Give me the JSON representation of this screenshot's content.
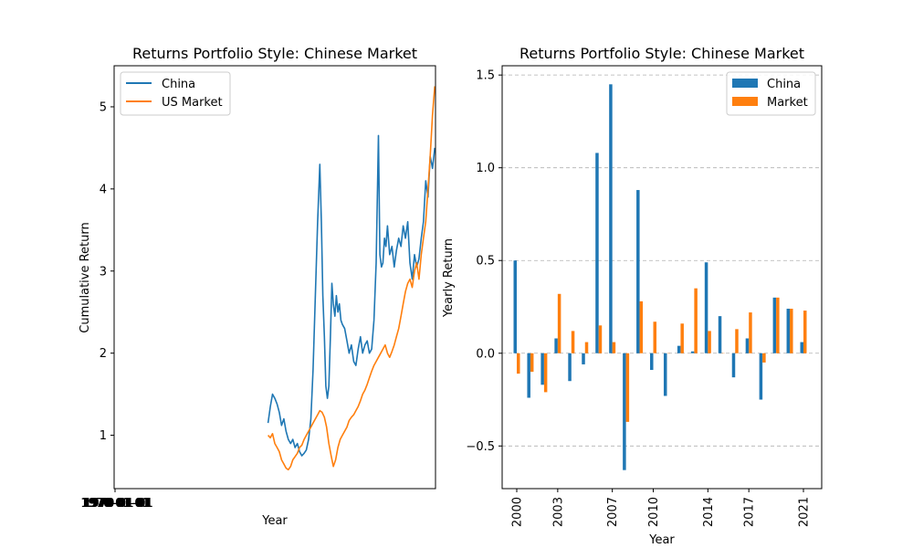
{
  "chart_data": [
    {
      "type": "line",
      "title": "Returns Portfolio Style: Chinese Market",
      "xlabel": "Year",
      "ylabel": "Cumulative Return",
      "x_tick_labels": [
        "1970-01-01",
        "1970-01-01",
        "1970-01-01",
        "1970-01-01",
        "1970-01-01",
        "1970-01-01",
        "1970-01-01",
        "1970-01-01"
      ],
      "ylim": [
        0.35,
        5.5
      ],
      "yticks": [
        1,
        2,
        3,
        4,
        5
      ],
      "grid": false,
      "legend_position": "top-left",
      "series": [
        {
          "name": "China",
          "color": "#1f77b4",
          "x": [
            2000.0,
            2000.3,
            2000.6,
            2000.9,
            2001.2,
            2001.5,
            2001.8,
            2002.1,
            2002.4,
            2002.7,
            2003.0,
            2003.3,
            2003.6,
            2003.9,
            2004.2,
            2004.5,
            2004.8,
            2005.1,
            2005.4,
            2005.7,
            2006.0,
            2006.3,
            2006.6,
            2006.9,
            2007.1,
            2007.3,
            2007.5,
            2007.7,
            2007.9,
            2008.1,
            2008.3,
            2008.5,
            2008.7,
            2008.9,
            2009.1,
            2009.3,
            2009.5,
            2009.7,
            2009.9,
            2010.2,
            2010.5,
            2010.8,
            2011.1,
            2011.4,
            2011.7,
            2012.0,
            2012.3,
            2012.6,
            2012.9,
            2013.2,
            2013.5,
            2013.8,
            2014.1,
            2014.4,
            2014.7,
            2014.9,
            2015.1,
            2015.3,
            2015.5,
            2015.7,
            2015.9,
            2016.2,
            2016.5,
            2016.8,
            2017.1,
            2017.4,
            2017.7,
            2018.0,
            2018.3,
            2018.6,
            2018.9,
            2019.2,
            2019.5,
            2019.8,
            2020.1,
            2020.4,
            2020.7,
            2021.0,
            2021.3,
            2021.6,
            2021.9,
            2022.2
          ],
          "y": [
            1.15,
            1.35,
            1.5,
            1.45,
            1.38,
            1.28,
            1.12,
            1.2,
            1.05,
            0.95,
            0.9,
            0.95,
            0.85,
            0.9,
            0.8,
            0.75,
            0.78,
            0.82,
            0.95,
            1.2,
            1.8,
            2.7,
            3.6,
            4.3,
            3.6,
            2.7,
            2.2,
            1.6,
            1.45,
            1.6,
            2.2,
            2.85,
            2.6,
            2.45,
            2.7,
            2.5,
            2.6,
            2.4,
            2.35,
            2.3,
            2.15,
            2.0,
            2.1,
            1.9,
            1.85,
            2.05,
            2.2,
            2.0,
            2.1,
            2.15,
            2.0,
            2.05,
            2.4,
            3.1,
            4.65,
            3.2,
            3.05,
            3.1,
            3.4,
            3.3,
            3.55,
            3.2,
            3.3,
            3.05,
            3.25,
            3.4,
            3.3,
            3.55,
            3.4,
            3.6,
            3.1,
            2.9,
            3.2,
            3.05,
            3.15,
            3.4,
            3.6,
            4.1,
            3.9,
            4.4,
            4.25,
            4.5
          ]
        },
        {
          "name": "US Market",
          "color": "#ff7f0e",
          "x": [
            2000.0,
            2000.3,
            2000.6,
            2000.9,
            2001.2,
            2001.5,
            2001.8,
            2002.1,
            2002.4,
            2002.7,
            2003.0,
            2003.3,
            2003.6,
            2003.9,
            2004.2,
            2004.5,
            2004.8,
            2005.1,
            2005.4,
            2005.7,
            2006.0,
            2006.3,
            2006.6,
            2006.9,
            2007.2,
            2007.5,
            2007.8,
            2008.1,
            2008.4,
            2008.7,
            2009.0,
            2009.3,
            2009.6,
            2009.9,
            2010.2,
            2010.5,
            2010.8,
            2011.1,
            2011.4,
            2011.7,
            2012.0,
            2012.3,
            2012.6,
            2012.9,
            2013.2,
            2013.5,
            2013.8,
            2014.1,
            2014.4,
            2014.7,
            2015.0,
            2015.3,
            2015.6,
            2015.9,
            2016.2,
            2016.5,
            2016.8,
            2017.1,
            2017.4,
            2017.7,
            2018.0,
            2018.3,
            2018.6,
            2018.9,
            2019.2,
            2019.5,
            2019.8,
            2020.1,
            2020.4,
            2020.7,
            2021.0,
            2021.3,
            2021.6,
            2021.9,
            2022.2
          ],
          "y": [
            1.0,
            0.97,
            1.02,
            0.9,
            0.85,
            0.8,
            0.7,
            0.65,
            0.6,
            0.58,
            0.62,
            0.7,
            0.74,
            0.78,
            0.85,
            0.88,
            0.95,
            1.0,
            1.05,
            1.1,
            1.15,
            1.2,
            1.25,
            1.3,
            1.28,
            1.22,
            1.1,
            0.9,
            0.75,
            0.62,
            0.7,
            0.85,
            0.95,
            1.0,
            1.05,
            1.1,
            1.18,
            1.22,
            1.25,
            1.3,
            1.35,
            1.42,
            1.5,
            1.55,
            1.62,
            1.7,
            1.78,
            1.85,
            1.9,
            1.95,
            2.0,
            2.05,
            2.1,
            2.0,
            1.95,
            2.02,
            2.1,
            2.2,
            2.3,
            2.45,
            2.6,
            2.75,
            2.85,
            2.9,
            2.8,
            3.0,
            3.1,
            2.9,
            3.2,
            3.4,
            3.6,
            4.0,
            4.4,
            4.9,
            5.25
          ]
        }
      ]
    },
    {
      "type": "bar",
      "title": "Returns Portfolio Style: Chinese Market",
      "xlabel": "Year",
      "ylabel": "Yearly Return",
      "categories": [
        "2000",
        "2001",
        "2002",
        "2003",
        "2004",
        "2005",
        "2006",
        "2007",
        "2008",
        "2009",
        "2010",
        "2011",
        "2012",
        "2013",
        "2014",
        "2015",
        "2016",
        "2017",
        "2018",
        "2019",
        "2020",
        "2021"
      ],
      "x_tick_labels": [
        "2000",
        "2003",
        "2007",
        "2010",
        "2014",
        "2017",
        "2021"
      ],
      "ylim": [
        -0.73,
        1.55
      ],
      "yticks": [
        -0.5,
        0.0,
        0.5,
        1.0,
        1.5
      ],
      "ytick_labels": [
        "−0.5",
        "0.0",
        "0.5",
        "1.0",
        "1.5"
      ],
      "grid": true,
      "legend_position": "top-right",
      "series": [
        {
          "name": "China",
          "color": "#1f77b4",
          "values": [
            0.5,
            -0.24,
            -0.17,
            0.08,
            -0.15,
            -0.06,
            1.08,
            1.45,
            -0.63,
            0.88,
            -0.09,
            -0.23,
            0.04,
            0.01,
            0.49,
            0.2,
            -0.13,
            0.08,
            -0.25,
            0.3,
            0.24,
            0.06
          ]
        },
        {
          "name": "Market",
          "color": "#ff7f0e",
          "values": [
            -0.11,
            -0.1,
            -0.21,
            0.32,
            0.12,
            0.06,
            0.15,
            0.06,
            -0.37,
            0.28,
            0.17,
            0.0,
            0.16,
            0.35,
            0.12,
            0.0,
            0.13,
            0.22,
            -0.05,
            0.3,
            0.24,
            0.23
          ]
        }
      ]
    }
  ]
}
